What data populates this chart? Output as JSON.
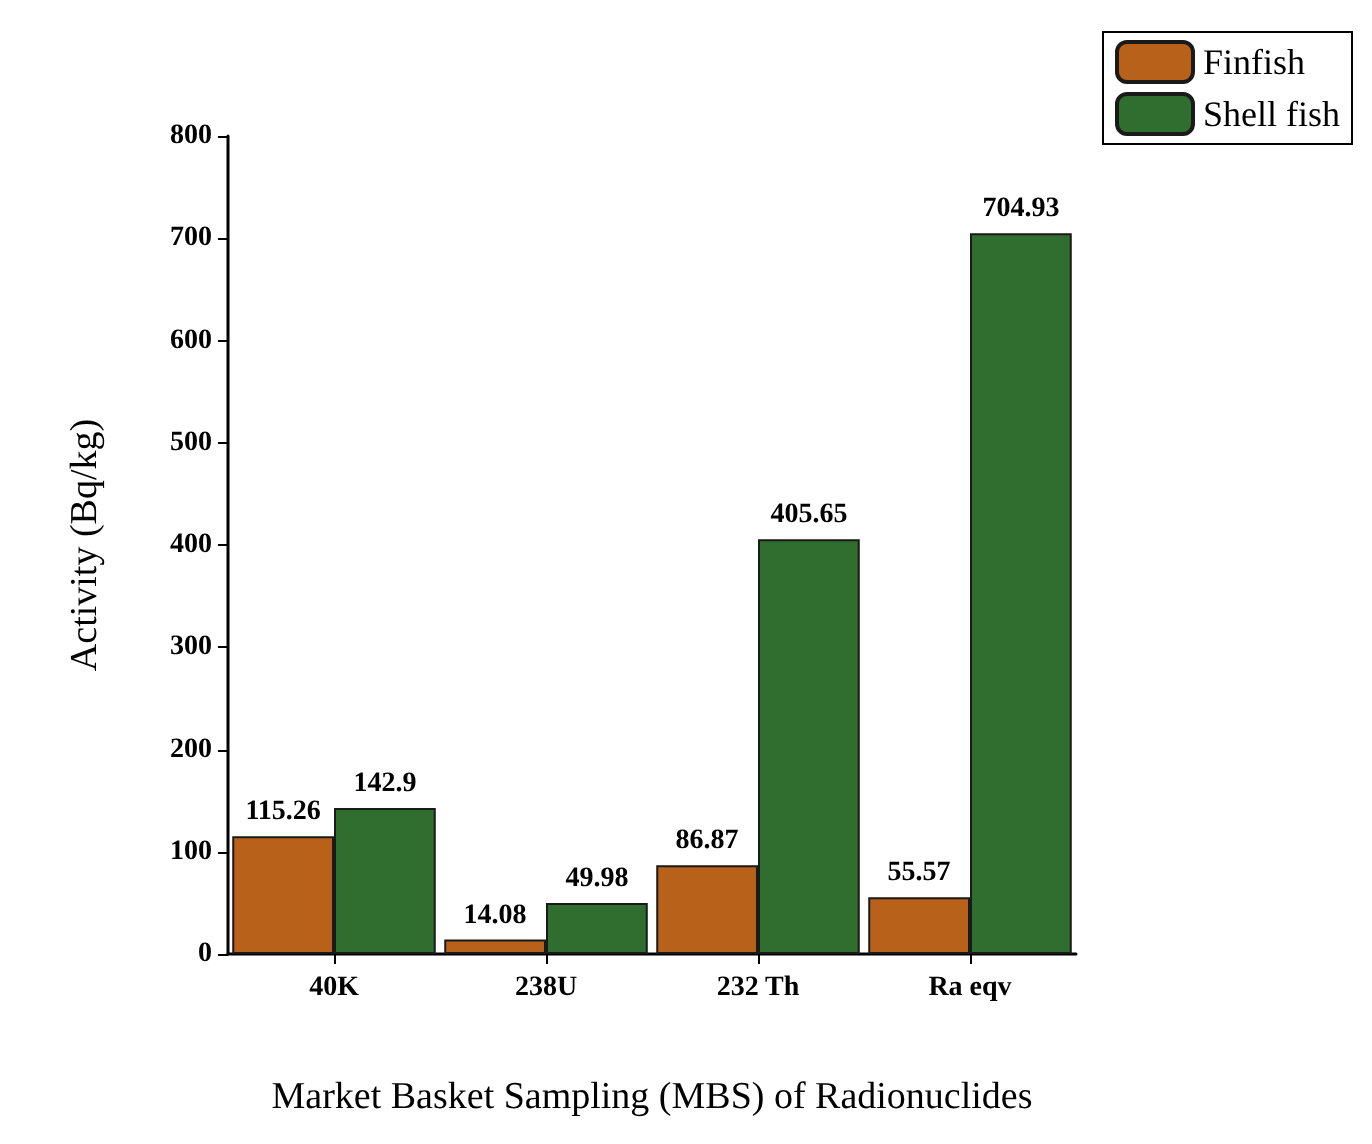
{
  "chart_data": {
    "type": "bar",
    "xlabel": "Market Basket Sampling (MBS) of Radionuclides",
    "ylabel": "Activity (Bq/kg)",
    "categories": [
      "40K",
      "238U",
      "232 Th",
      "Ra eqv"
    ],
    "series": [
      {
        "name": "Finfish",
        "color": "#b8611a",
        "values": [
          115.26,
          14.08,
          86.87,
          55.57
        ]
      },
      {
        "name": "Shell fish",
        "color": "#2f6e2f",
        "values": [
          142.9,
          49.98,
          405.65,
          704.93
        ]
      }
    ],
    "ylim": [
      0,
      800
    ],
    "yticks": [
      0,
      100,
      200,
      300,
      400,
      500,
      600,
      700,
      800
    ],
    "grid": false,
    "legend": "top right",
    "data_labels": true
  }
}
